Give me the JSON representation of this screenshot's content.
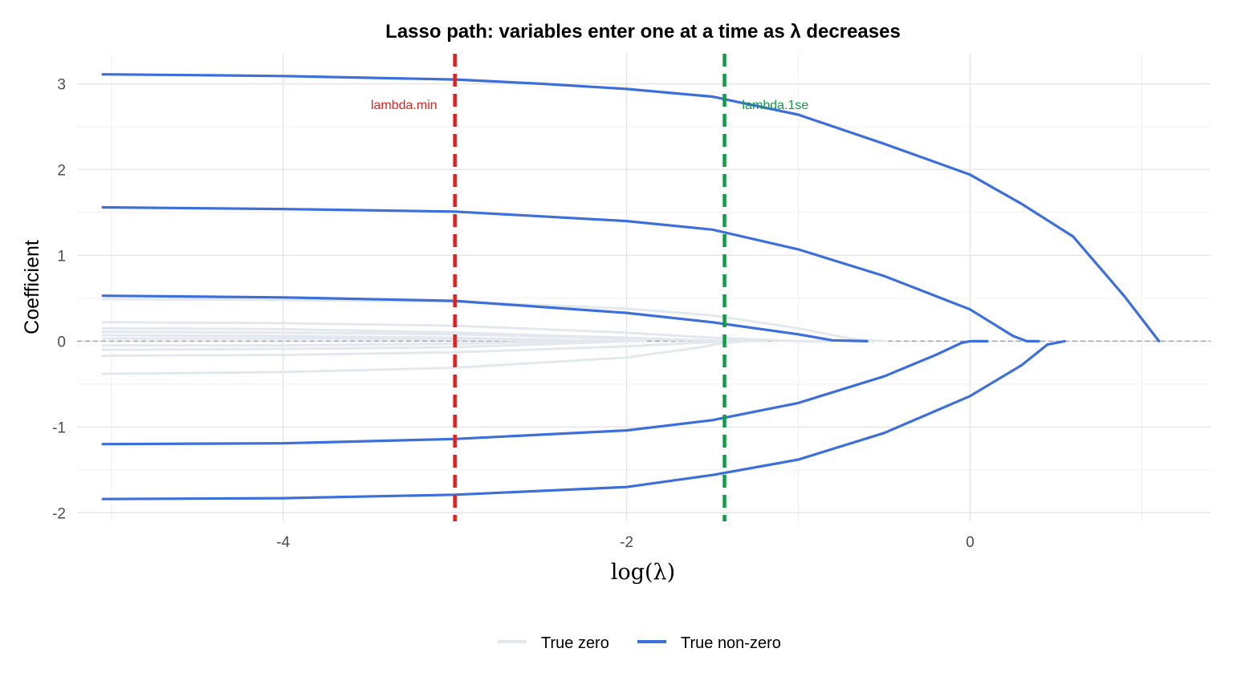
{
  "chart_data": {
    "type": "line",
    "title": "Lasso path: variables enter one at a time as λ decreases",
    "xlabel": "log(λ)",
    "ylabel": "Coefficient",
    "xlim": [
      -5.2,
      1.4
    ],
    "ylim": [
      -2.1,
      3.35
    ],
    "x_ticks": [
      -4,
      -2,
      0
    ],
    "x_tick_labels": [
      "-4",
      "-2",
      "0"
    ],
    "y_ticks": [
      -2,
      -1,
      0,
      1,
      2,
      3
    ],
    "y_tick_labels": [
      "-2",
      "-1",
      "0",
      "1",
      "2",
      "3"
    ],
    "grid": true,
    "legend_position": "bottom",
    "legend": [
      {
        "label": "True zero",
        "color": "#e3e8ef"
      },
      {
        "label": "True non-zero",
        "color": "#3d6fdb"
      }
    ],
    "vertical_lines": [
      {
        "x": -3.0,
        "label": "lambda.min",
        "color": "#dd2222",
        "label_side": "left",
        "label_y": 2.76
      },
      {
        "x": -1.43,
        "label": "lambda.1se",
        "color": "#16994a",
        "label_side": "right",
        "label_y": 2.76
      }
    ],
    "zero_line": {
      "y": 0,
      "color": "#9aa3b2"
    },
    "series": [
      {
        "group": "True non-zero",
        "x": [
          -5.05,
          -4.5,
          -4.0,
          -3.5,
          -3.0,
          -2.5,
          -2.0,
          -1.5,
          -1.0,
          -0.5,
          0.0,
          0.3,
          0.6,
          0.9,
          1.1
        ],
        "values": [
          3.11,
          3.1,
          3.09,
          3.07,
          3.05,
          3.0,
          2.94,
          2.85,
          2.64,
          2.3,
          1.94,
          1.6,
          1.22,
          0.52,
          0.0
        ]
      },
      {
        "group": "True non-zero",
        "x": [
          -5.05,
          -4.0,
          -3.0,
          -2.0,
          -1.5,
          -1.0,
          -0.5,
          0.0,
          0.25,
          0.33,
          0.4
        ],
        "values": [
          1.56,
          1.54,
          1.51,
          1.4,
          1.3,
          1.07,
          0.76,
          0.37,
          0.06,
          0.0,
          0.0
        ]
      },
      {
        "group": "True non-zero",
        "x": [
          -5.05,
          -4.0,
          -3.0,
          -2.0,
          -1.5,
          -1.0,
          -0.8,
          -0.6
        ],
        "values": [
          0.53,
          0.51,
          0.47,
          0.33,
          0.22,
          0.08,
          0.01,
          0.0
        ]
      },
      {
        "group": "True non-zero",
        "x": [
          -5.05,
          -4.0,
          -3.0,
          -2.0,
          -1.5,
          -1.0,
          -0.5,
          -0.2,
          -0.05,
          0.0,
          0.1
        ],
        "values": [
          -1.2,
          -1.19,
          -1.14,
          -1.04,
          -0.92,
          -0.72,
          -0.41,
          -0.16,
          -0.02,
          0.0,
          0.0
        ]
      },
      {
        "group": "True non-zero",
        "x": [
          -5.05,
          -4.0,
          -3.0,
          -2.0,
          -1.5,
          -1.0,
          -0.5,
          0.0,
          0.3,
          0.45,
          0.55
        ],
        "values": [
          -1.84,
          -1.83,
          -1.79,
          -1.7,
          -1.56,
          -1.38,
          -1.07,
          -0.64,
          -0.28,
          -0.04,
          0.0
        ]
      },
      {
        "group": "True zero",
        "x": [
          -5.05,
          -4.0,
          -3.0,
          -2.0,
          -1.5,
          -1.0,
          -0.7,
          -0.5
        ],
        "values": [
          0.49,
          0.48,
          0.46,
          0.38,
          0.3,
          0.15,
          0.03,
          0.0
        ]
      },
      {
        "group": "True zero",
        "x": [
          -5.05,
          -4.0,
          -3.0,
          -2.0,
          -1.5,
          -1.0,
          -0.8
        ],
        "values": [
          0.22,
          0.21,
          0.18,
          0.1,
          0.04,
          0.0,
          0.0
        ]
      },
      {
        "group": "True zero",
        "x": [
          -5.05,
          -4.0,
          -3.0,
          -2.0,
          -1.6,
          -1.2
        ],
        "values": [
          0.15,
          0.14,
          0.1,
          0.04,
          0.01,
          0.0
        ]
      },
      {
        "group": "True zero",
        "x": [
          -5.05,
          -4.0,
          -3.0,
          -2.0,
          -1.6,
          -1.3
        ],
        "values": [
          0.11,
          0.1,
          0.08,
          0.03,
          0.01,
          0.0
        ]
      },
      {
        "group": "True zero",
        "x": [
          -5.05,
          -4.0,
          -3.0,
          -2.3,
          -1.9
        ],
        "values": [
          0.07,
          0.06,
          0.04,
          0.01,
          0.0
        ]
      },
      {
        "group": "True zero",
        "x": [
          -5.05,
          -4.0,
          -3.0,
          -2.5,
          -2.1
        ],
        "values": [
          0.03,
          0.03,
          0.02,
          0.01,
          0.0
        ]
      },
      {
        "group": "True zero",
        "x": [
          -5.05,
          -4.0,
          -3.0,
          -2.0,
          -1.6,
          -1.43,
          -1.3
        ],
        "values": [
          -0.38,
          -0.36,
          -0.31,
          -0.19,
          -0.08,
          -0.02,
          0.0
        ]
      },
      {
        "group": "True zero",
        "x": [
          -5.05,
          -4.0,
          -3.0,
          -2.0,
          -1.6,
          -1.4
        ],
        "values": [
          -0.17,
          -0.16,
          -0.13,
          -0.06,
          -0.02,
          0.0
        ]
      },
      {
        "group": "True zero",
        "x": [
          -5.05,
          -4.0,
          -3.0,
          -2.4,
          -2.0
        ],
        "values": [
          -0.1,
          -0.09,
          -0.07,
          -0.03,
          0.0
        ]
      },
      {
        "group": "True zero",
        "x": [
          -5.05,
          -4.0,
          -3.0,
          -2.5,
          -2.2
        ],
        "values": [
          -0.05,
          -0.05,
          -0.03,
          -0.01,
          0.0
        ]
      }
    ]
  }
}
